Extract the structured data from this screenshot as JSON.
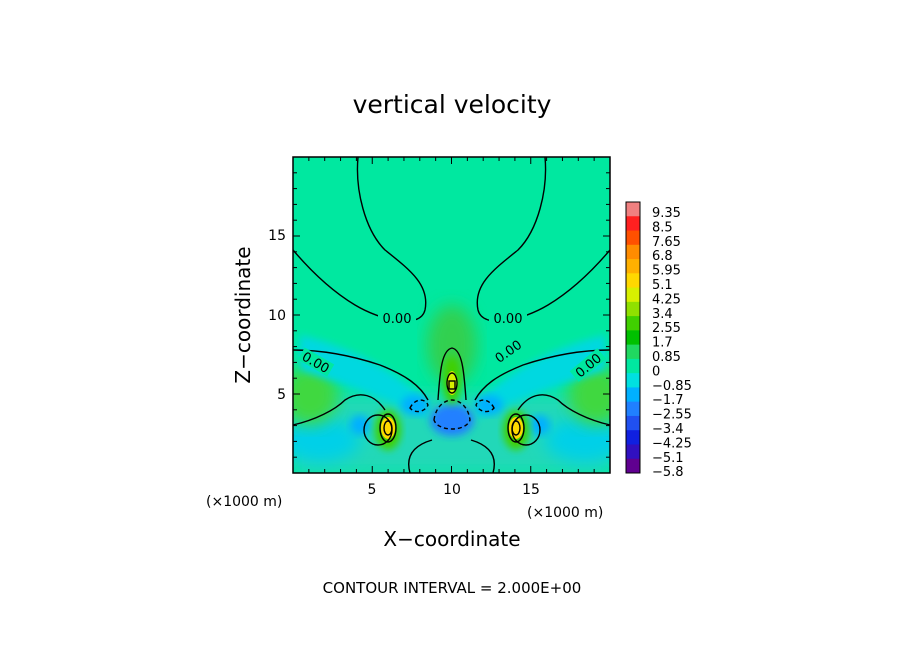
{
  "chart_data": {
    "type": "heatmap",
    "title": "vertical velocity",
    "xlabel": "X−coordinate",
    "ylabel": "Z−coordinate",
    "x_unit": "(×1000 m)",
    "y_unit": "(×1000 m)",
    "xlim": [
      0,
      20
    ],
    "ylim": [
      0,
      20
    ],
    "x_ticks": [
      "5",
      "10",
      "15"
    ],
    "y_ticks": [
      "5",
      "10",
      "15"
    ],
    "x_tick_values": [
      5,
      10,
      15
    ],
    "y_tick_values": [
      5,
      10,
      15
    ],
    "colorbar": {
      "levels": [
        "9.35",
        "8.5",
        "7.65",
        "6.8",
        "5.95",
        "5.1",
        "4.25",
        "3.4",
        "2.55",
        "1.7",
        "0.85",
        "0",
        "−0.85",
        "−1.7",
        "−2.55",
        "−3.4",
        "−4.25",
        "−5.1",
        "−5.8"
      ],
      "colors": [
        "#f08080",
        "#ff2020",
        "#ff5000",
        "#ff8c00",
        "#ffb000",
        "#ffd800",
        "#d8f000",
        "#90e000",
        "#40d000",
        "#00c000",
        "#20d860",
        "#00e8a0",
        "#00e0e0",
        "#00b0ff",
        "#2080ff",
        "#2050f0",
        "#1020e0",
        "#3010c0",
        "#600090"
      ]
    },
    "contour_label": "0.00",
    "contour_interval_text": "CONTOUR INTERVAL = 2.000E+00",
    "features": [
      {
        "x": 10,
        "z": 5.5,
        "value": 5.0,
        "kind": "updraft"
      },
      {
        "x": 6,
        "z": 3.0,
        "value": 4.5,
        "kind": "updraft"
      },
      {
        "x": 14,
        "z": 3.0,
        "value": 4.5,
        "kind": "updraft"
      },
      {
        "x": 10,
        "z": 3.3,
        "value": -3.2,
        "kind": "downdraft"
      },
      {
        "x": 8.5,
        "z": 4.2,
        "value": -2.0,
        "kind": "downdraft"
      },
      {
        "x": 11.5,
        "z": 4.2,
        "value": -2.0,
        "kind": "downdraft"
      }
    ]
  }
}
